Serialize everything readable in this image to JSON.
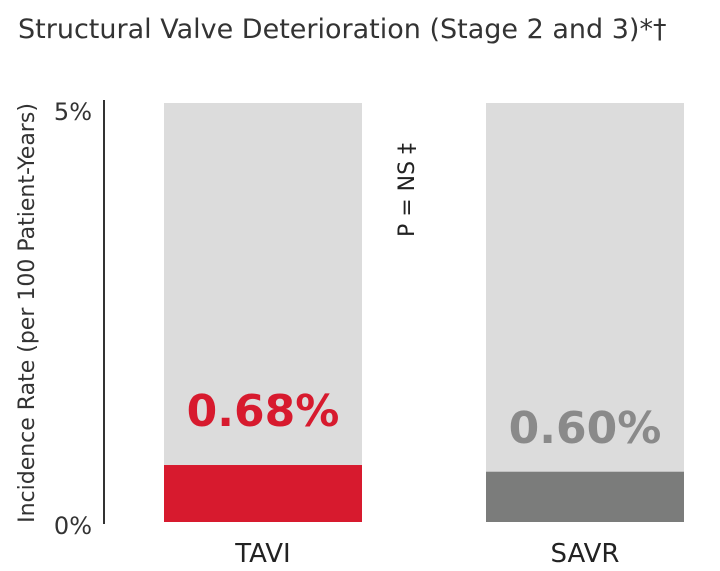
{
  "chart_data": {
    "type": "bar",
    "title": "Structural Valve Deterioration (Stage 2 and 3)*†",
    "ylabel": "Incidence Rate (per 100 Patient-Years)",
    "xlabel": "",
    "ylim": [
      0,
      5
    ],
    "yticks": [
      "0%",
      "5%"
    ],
    "categories": [
      "TAVI",
      "SAVR"
    ],
    "values": [
      0.68,
      0.6
    ],
    "data_labels": [
      "0.68%",
      "0.60%"
    ],
    "annotation": "P = NS ‡",
    "grid": false,
    "legend": "none",
    "colors": {
      "background_bar": "#dcdcdc",
      "TAVI": "#d71a2e",
      "SAVR": "#7b7c7b",
      "label_TAVI": "#d71a2e",
      "label_SAVR": "#8a8a8a",
      "axis": "#333333"
    }
  }
}
